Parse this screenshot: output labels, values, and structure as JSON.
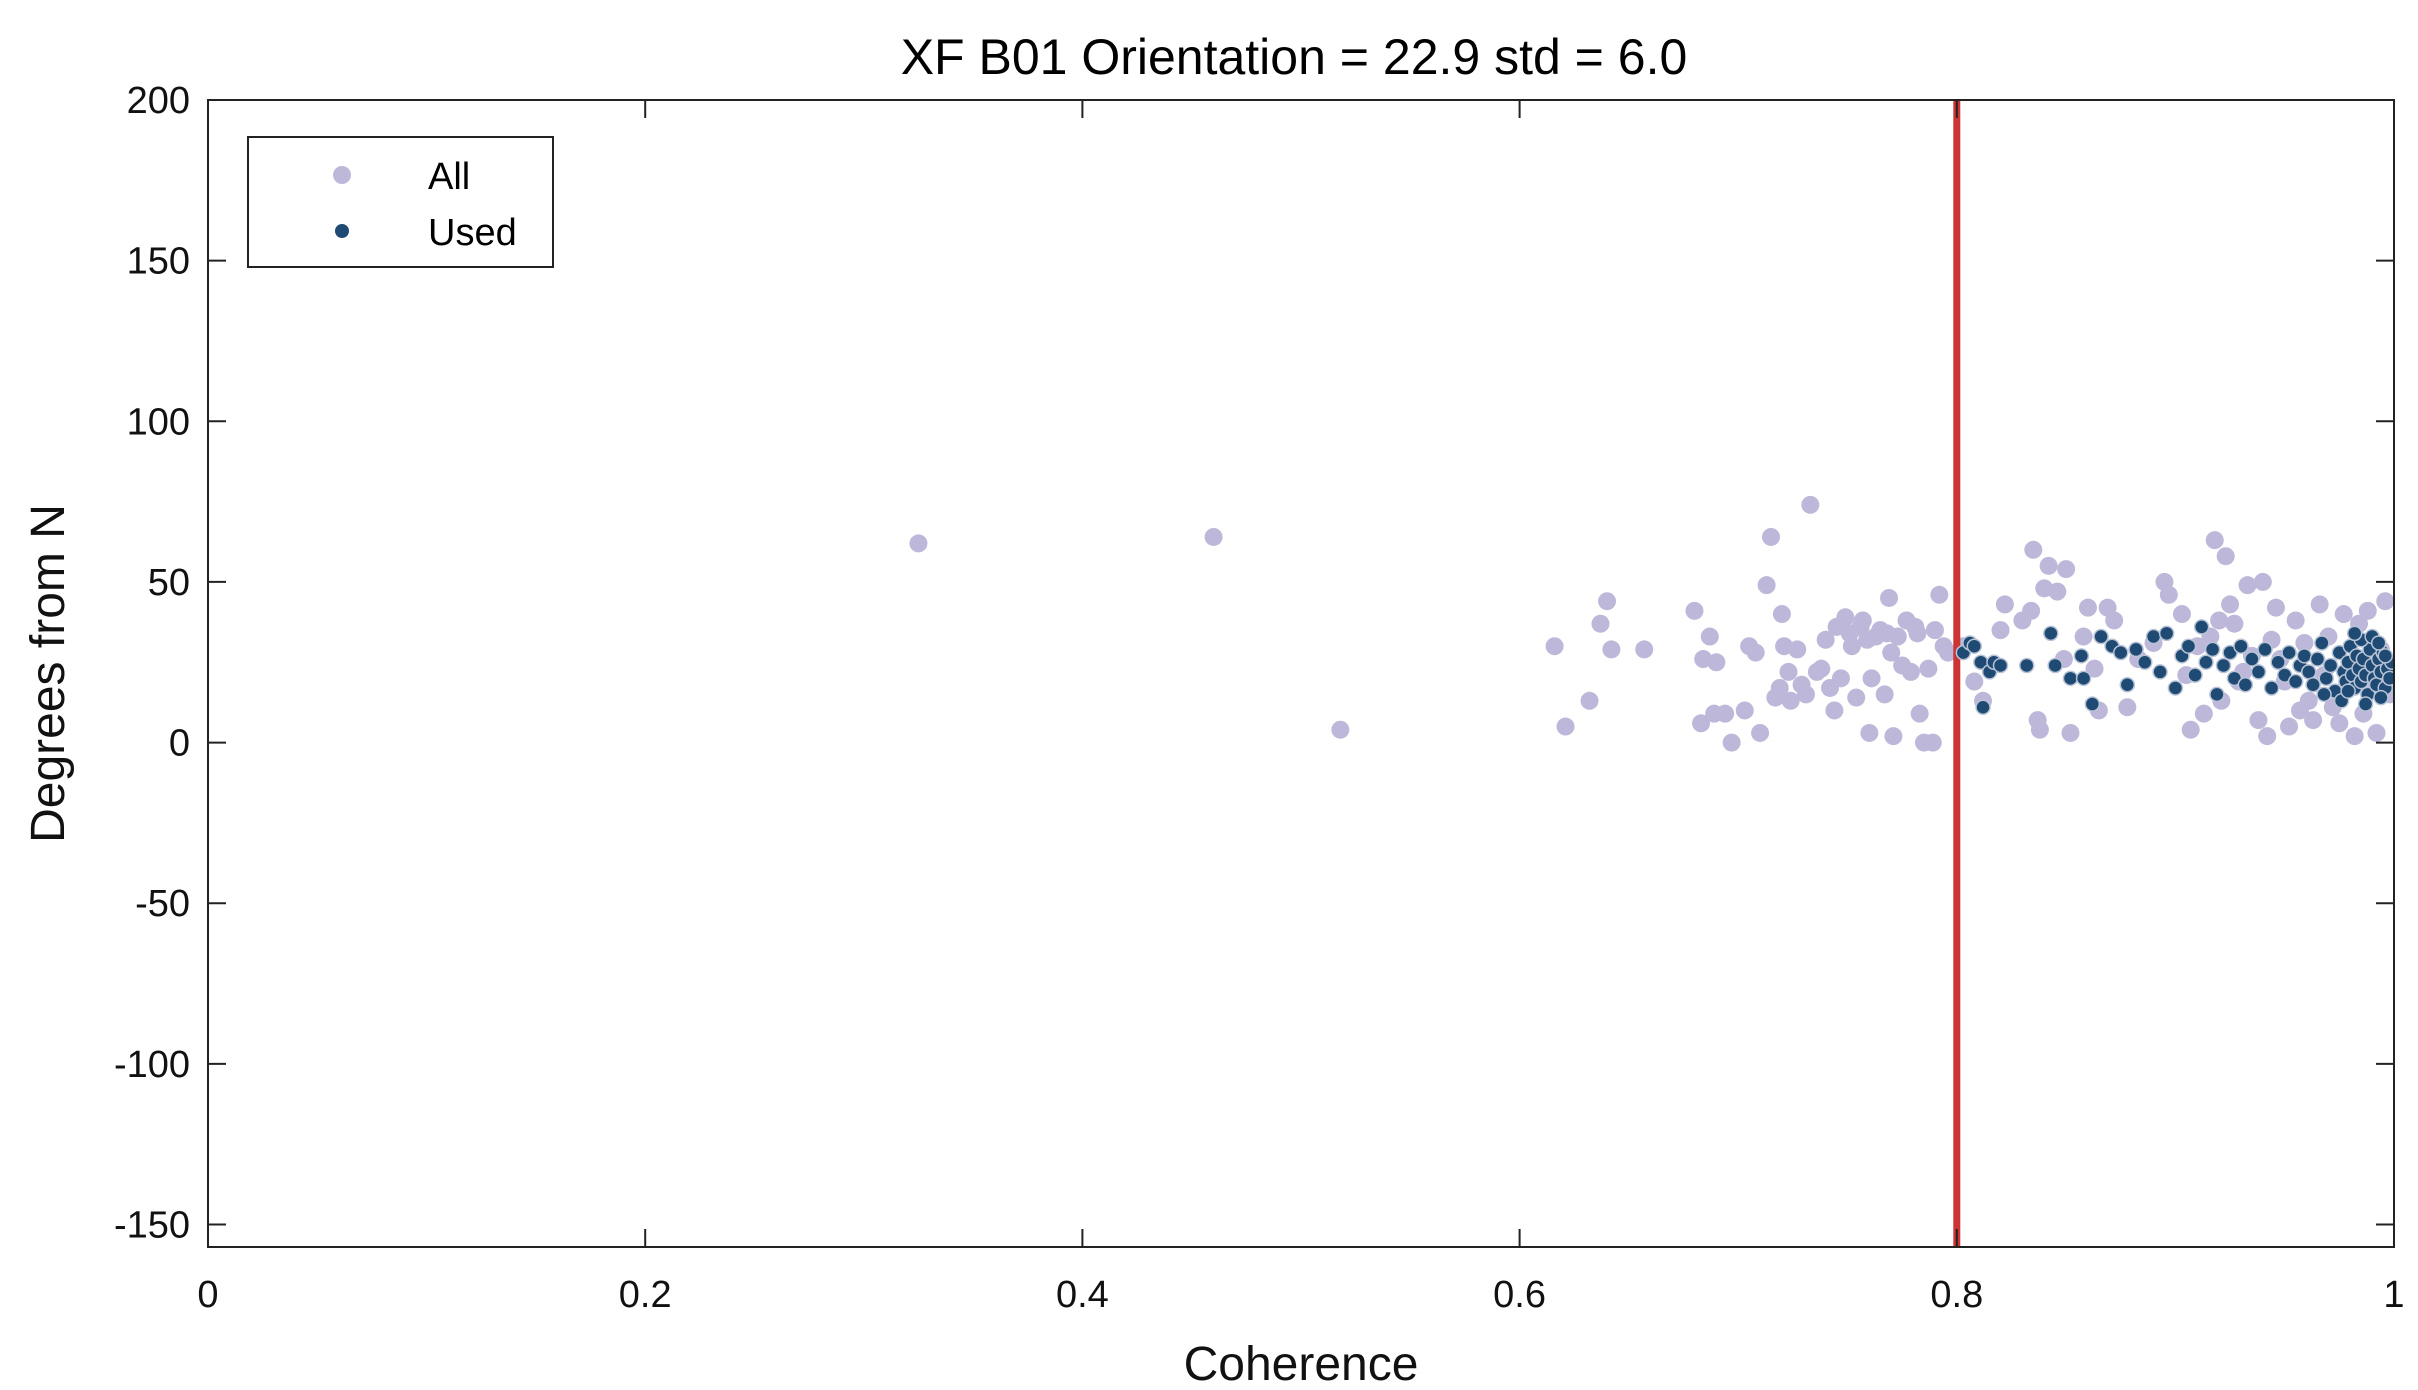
{
  "chart_data": {
    "type": "scatter",
    "title": "XF B01 Orientation = 22.9  std = 6.0",
    "xlabel": "Coherence",
    "ylabel": "Degrees from N",
    "xlim": [
      0,
      1
    ],
    "ylim": [
      -157,
      200
    ],
    "xticks": [
      0,
      0.2,
      0.4,
      0.6,
      0.8,
      1
    ],
    "xtick_labels": [
      "0",
      "0.2",
      "0.4",
      "0.6",
      "0.8",
      "1"
    ],
    "yticks": [
      200,
      150,
      100,
      50,
      0,
      -50,
      -100,
      -150
    ],
    "ytick_labels": [
      "200",
      "150",
      "100",
      "50",
      "0",
      "-50",
      "-100",
      "-150"
    ],
    "grid": false,
    "legend": {
      "position": "top-left",
      "entries": [
        "All",
        "Used"
      ]
    },
    "threshold_line": {
      "x": 0.8,
      "color": "#cc3333"
    },
    "colors": {
      "all": "#bdb8d9",
      "used": "#1f4a73",
      "threshold": "#cc3333"
    },
    "series": [
      {
        "name": "All",
        "points": [
          [
            0.325,
            62
          ],
          [
            0.46,
            64
          ],
          [
            0.518,
            4
          ],
          [
            0.616,
            30
          ],
          [
            0.621,
            5
          ],
          [
            0.632,
            13
          ],
          [
            0.637,
            37
          ],
          [
            0.64,
            44
          ],
          [
            0.642,
            29
          ],
          [
            0.657,
            29
          ],
          [
            0.68,
            41
          ],
          [
            0.683,
            6
          ],
          [
            0.684,
            26
          ],
          [
            0.687,
            33
          ],
          [
            0.689,
            9
          ],
          [
            0.69,
            25
          ],
          [
            0.694,
            9
          ],
          [
            0.697,
            0
          ],
          [
            0.703,
            10
          ],
          [
            0.705,
            30
          ],
          [
            0.708,
            28
          ],
          [
            0.71,
            3
          ],
          [
            0.713,
            49
          ],
          [
            0.715,
            64
          ],
          [
            0.717,
            14
          ],
          [
            0.719,
            17
          ],
          [
            0.72,
            40
          ],
          [
            0.721,
            30
          ],
          [
            0.723,
            22
          ],
          [
            0.724,
            13
          ],
          [
            0.727,
            29
          ],
          [
            0.729,
            18
          ],
          [
            0.731,
            15
          ],
          [
            0.733,
            74
          ],
          [
            0.736,
            22
          ],
          [
            0.738,
            23
          ],
          [
            0.74,
            32
          ],
          [
            0.742,
            17
          ],
          [
            0.744,
            10
          ],
          [
            0.745,
            36
          ],
          [
            0.747,
            20
          ],
          [
            0.749,
            39
          ],
          [
            0.751,
            34
          ],
          [
            0.752,
            30
          ],
          [
            0.754,
            14
          ],
          [
            0.756,
            36
          ],
          [
            0.757,
            38
          ],
          [
            0.759,
            32
          ],
          [
            0.76,
            3
          ],
          [
            0.761,
            20
          ],
          [
            0.763,
            33
          ],
          [
            0.765,
            35
          ],
          [
            0.767,
            15
          ],
          [
            0.768,
            34
          ],
          [
            0.769,
            45
          ],
          [
            0.77,
            28
          ],
          [
            0.771,
            2
          ],
          [
            0.773,
            33
          ],
          [
            0.775,
            24
          ],
          [
            0.777,
            38
          ],
          [
            0.779,
            22
          ],
          [
            0.781,
            36
          ],
          [
            0.782,
            34
          ],
          [
            0.783,
            9
          ],
          [
            0.785,
            0
          ],
          [
            0.787,
            23
          ],
          [
            0.789,
            0
          ],
          [
            0.79,
            35
          ],
          [
            0.792,
            46
          ],
          [
            0.794,
            30
          ],
          [
            0.796,
            28
          ],
          [
            0.803,
            30
          ],
          [
            0.808,
            19
          ],
          [
            0.812,
            13
          ],
          [
            0.82,
            35
          ],
          [
            0.822,
            43
          ],
          [
            0.83,
            38
          ],
          [
            0.834,
            41
          ],
          [
            0.835,
            60
          ],
          [
            0.837,
            7
          ],
          [
            0.838,
            4
          ],
          [
            0.84,
            48
          ],
          [
            0.842,
            55
          ],
          [
            0.846,
            47
          ],
          [
            0.849,
            26
          ],
          [
            0.85,
            54
          ],
          [
            0.852,
            3
          ],
          [
            0.858,
            33
          ],
          [
            0.86,
            42
          ],
          [
            0.863,
            23
          ],
          [
            0.865,
            10
          ],
          [
            0.869,
            42
          ],
          [
            0.872,
            38
          ],
          [
            0.878,
            11
          ],
          [
            0.883,
            26
          ],
          [
            0.89,
            31
          ],
          [
            0.895,
            50
          ],
          [
            0.897,
            46
          ],
          [
            0.903,
            40
          ],
          [
            0.905,
            21
          ],
          [
            0.907,
            4
          ],
          [
            0.91,
            30
          ],
          [
            0.913,
            9
          ],
          [
            0.916,
            33
          ],
          [
            0.918,
            63
          ],
          [
            0.92,
            38
          ],
          [
            0.921,
            13
          ],
          [
            0.923,
            58
          ],
          [
            0.925,
            43
          ],
          [
            0.927,
            37
          ],
          [
            0.929,
            19
          ],
          [
            0.931,
            22
          ],
          [
            0.933,
            49
          ],
          [
            0.935,
            27
          ],
          [
            0.938,
            7
          ],
          [
            0.94,
            50
          ],
          [
            0.942,
            2
          ],
          [
            0.944,
            32
          ],
          [
            0.946,
            42
          ],
          [
            0.948,
            26
          ],
          [
            0.95,
            19
          ],
          [
            0.952,
            5
          ],
          [
            0.955,
            38
          ],
          [
            0.957,
            10
          ],
          [
            0.959,
            31
          ],
          [
            0.961,
            13
          ],
          [
            0.963,
            7
          ],
          [
            0.966,
            43
          ],
          [
            0.968,
            21
          ],
          [
            0.97,
            33
          ],
          [
            0.972,
            11
          ],
          [
            0.975,
            6
          ],
          [
            0.977,
            40
          ],
          [
            0.98,
            24
          ],
          [
            0.982,
            2
          ],
          [
            0.984,
            37
          ],
          [
            0.986,
            9
          ],
          [
            0.988,
            41
          ],
          [
            0.99,
            19
          ],
          [
            0.992,
            3
          ],
          [
            0.994,
            29
          ],
          [
            0.996,
            44
          ],
          [
            0.998,
            15
          ]
        ]
      },
      {
        "name": "Used",
        "points": [
          [
            0.803,
            28
          ],
          [
            0.806,
            31
          ],
          [
            0.808,
            30
          ],
          [
            0.811,
            25
          ],
          [
            0.812,
            11
          ],
          [
            0.815,
            22
          ],
          [
            0.817,
            25
          ],
          [
            0.82,
            24
          ],
          [
            0.832,
            24
          ],
          [
            0.843,
            34
          ],
          [
            0.845,
            24
          ],
          [
            0.852,
            20
          ],
          [
            0.857,
            27
          ],
          [
            0.858,
            20
          ],
          [
            0.862,
            12
          ],
          [
            0.866,
            33
          ],
          [
            0.871,
            30
          ],
          [
            0.875,
            28
          ],
          [
            0.878,
            18
          ],
          [
            0.882,
            29
          ],
          [
            0.886,
            25
          ],
          [
            0.89,
            33
          ],
          [
            0.893,
            22
          ],
          [
            0.896,
            34
          ],
          [
            0.9,
            17
          ],
          [
            0.903,
            27
          ],
          [
            0.906,
            30
          ],
          [
            0.909,
            21
          ],
          [
            0.912,
            36
          ],
          [
            0.914,
            25
          ],
          [
            0.917,
            29
          ],
          [
            0.919,
            15
          ],
          [
            0.922,
            24
          ],
          [
            0.925,
            28
          ],
          [
            0.927,
            20
          ],
          [
            0.93,
            30
          ],
          [
            0.932,
            18
          ],
          [
            0.935,
            26
          ],
          [
            0.938,
            22
          ],
          [
            0.941,
            29
          ],
          [
            0.944,
            17
          ],
          [
            0.947,
            25
          ],
          [
            0.95,
            21
          ],
          [
            0.952,
            28
          ],
          [
            0.955,
            19
          ],
          [
            0.957,
            24
          ],
          [
            0.959,
            27
          ],
          [
            0.961,
            22
          ],
          [
            0.963,
            18
          ],
          [
            0.965,
            26
          ],
          [
            0.967,
            31
          ],
          [
            0.969,
            20
          ],
          [
            0.971,
            24
          ],
          [
            0.973,
            16
          ],
          [
            0.975,
            28
          ],
          [
            0.977,
            22
          ],
          [
            0.978,
            19
          ],
          [
            0.979,
            25
          ],
          [
            0.98,
            30
          ],
          [
            0.981,
            21
          ],
          [
            0.982,
            17
          ],
          [
            0.983,
            27
          ],
          [
            0.984,
            23
          ],
          [
            0.985,
            19
          ],
          [
            0.986,
            26
          ],
          [
            0.987,
            21
          ],
          [
            0.988,
            15
          ],
          [
            0.989,
            29
          ],
          [
            0.99,
            24
          ],
          [
            0.991,
            20
          ],
          [
            0.992,
            18
          ],
          [
            0.993,
            26
          ],
          [
            0.994,
            22
          ],
          [
            0.995,
            28
          ],
          [
            0.996,
            17
          ],
          [
            0.997,
            23
          ],
          [
            0.998,
            20
          ],
          [
            0.999,
            25
          ],
          [
            0.985,
            32
          ],
          [
            0.99,
            33
          ],
          [
            0.994,
            14
          ],
          [
            0.976,
            13
          ],
          [
            0.968,
            15
          ],
          [
            0.982,
            34
          ],
          [
            0.993,
            31
          ],
          [
            0.987,
            12
          ],
          [
            0.979,
            16
          ],
          [
            0.996,
            27
          ]
        ]
      }
    ]
  }
}
